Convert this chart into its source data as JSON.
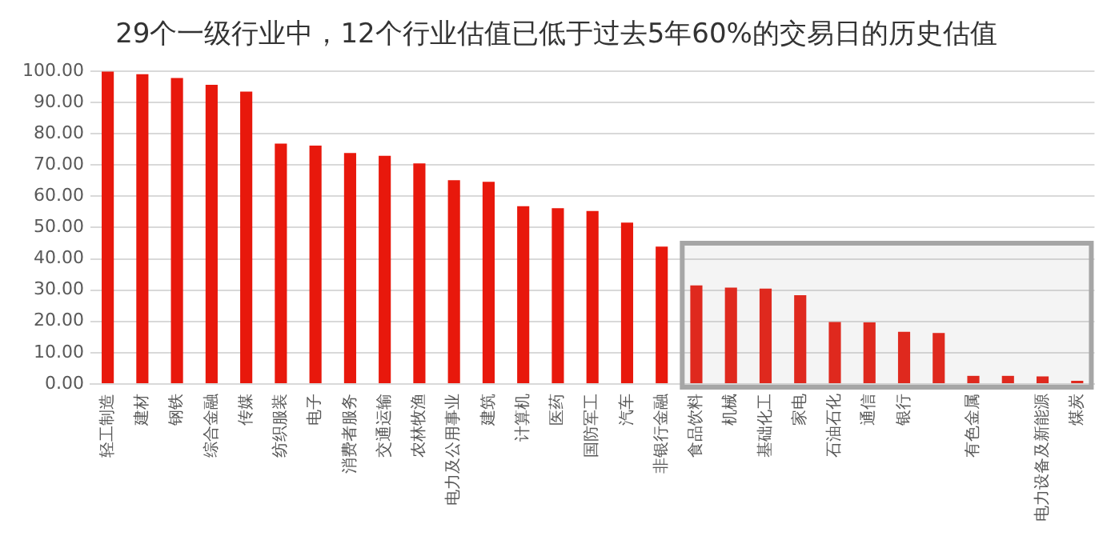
{
  "chart_data": {
    "type": "bar",
    "title": "29个一级行业中，12个行业估值已低于过去5年60%的交易日的历史估值",
    "categories": [
      "轻工制造",
      "建材",
      "钢铁",
      "综合金融",
      "传媒",
      "纺织服装",
      "电子",
      "消费者服务",
      "交通运输",
      "农林牧渔",
      "电力及公用事业",
      "建筑",
      "计算机",
      "医药",
      "国防军工",
      "汽车",
      "非银行金融",
      "食品饮料",
      "机械",
      "基础化工",
      "家电",
      "石油石化",
      "通信",
      "银行",
      null,
      "有色金属",
      null,
      "电力设备及新能源",
      "煤炭"
    ],
    "values": [
      99.8,
      99,
      97.8,
      95.6,
      93.4,
      76.8,
      76.2,
      73.8,
      72.9,
      70.5,
      65.1,
      64.6,
      56.8,
      56.2,
      55.3,
      51.6,
      43.9,
      31.5,
      30.8,
      30.5,
      28.4,
      19.8,
      19.7,
      16.7,
      16.3,
      2.6,
      2.6,
      2.4,
      1.0
    ],
    "color": "#e8180c",
    "ylim": [
      0,
      100
    ],
    "yticks": [
      {
        "value": 0,
        "label": "0.00"
      },
      {
        "value": 10,
        "label": "10.00"
      },
      {
        "value": 20,
        "label": "20.00"
      },
      {
        "value": 30,
        "label": "30.00"
      },
      {
        "value": 40,
        "label": "40.00"
      },
      {
        "value": 50,
        "label": "50.00"
      },
      {
        "value": 60,
        "label": "60.00"
      },
      {
        "value": 70,
        "label": "70.00"
      },
      {
        "value": 80,
        "label": "80.00"
      },
      {
        "value": 90,
        "label": "90.00"
      },
      {
        "value": 100,
        "label": "100.00"
      }
    ],
    "grid": "y",
    "bands": [
      {
        "axis": "x",
        "from": "食品饮料",
        "to": "煤炭",
        "color": "#a6a6a6"
      }
    ]
  }
}
